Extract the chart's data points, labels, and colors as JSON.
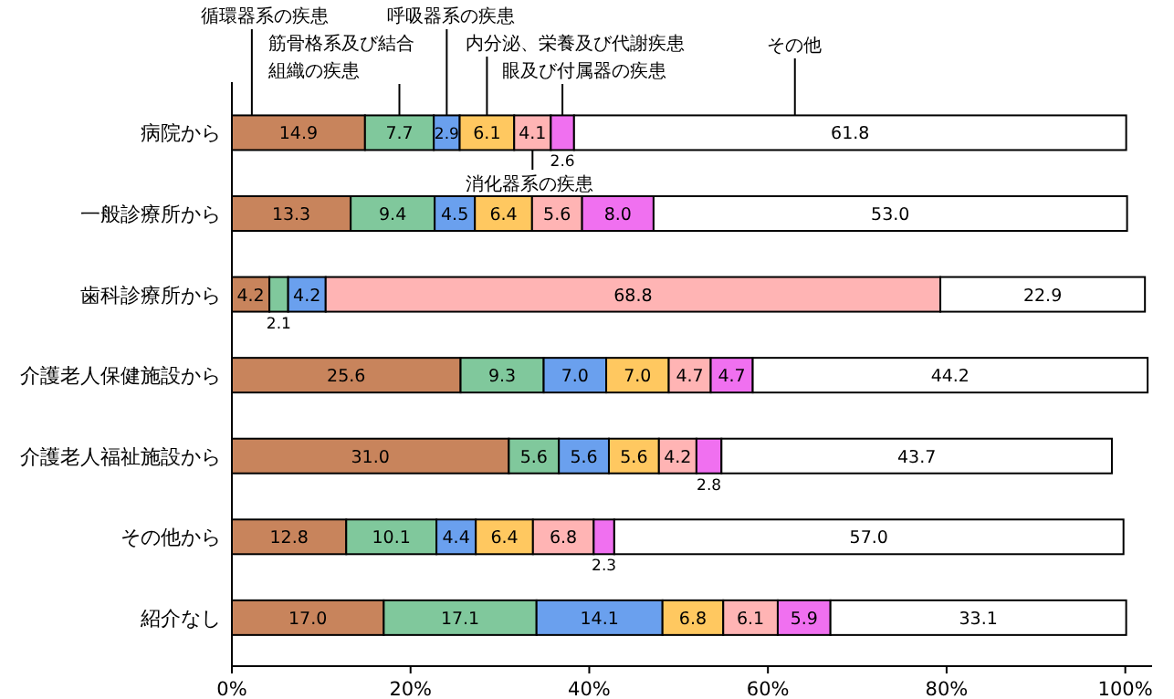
{
  "chart_data": {
    "type": "bar",
    "orientation": "horizontal",
    "stacked": true,
    "legend": "top",
    "categories": [
      "病院から",
      "一般診療所から",
      "歯科診療所から",
      "介護老人保健施設から",
      "介護老人福祉施設から",
      "その他から",
      "紹介なし"
    ],
    "xlim": [
      0,
      103
    ],
    "xticks": [
      {
        "value": 0,
        "label": "0%"
      },
      {
        "value": 20,
        "label": "20%"
      },
      {
        "value": 40,
        "label": "40%"
      },
      {
        "value": 60,
        "label": "60%"
      },
      {
        "value": 80,
        "label": "80%"
      },
      {
        "value": 100,
        "label": "100%"
      }
    ],
    "series": [
      {
        "name": "循環器系の疾患",
        "color": "#c8845c",
        "values": [
          14.9,
          13.3,
          4.2,
          25.6,
          31.0,
          12.8,
          17.0
        ],
        "value_labels": [
          "14.9",
          "13.3",
          "4.2",
          "25.6",
          "31.0",
          "12.8",
          "17.0"
        ]
      },
      {
        "name": "筋骨格系及び結合組織の疾患",
        "color": "#80c89c",
        "values": [
          7.7,
          9.4,
          2.1,
          9.3,
          5.6,
          10.1,
          17.1
        ],
        "value_labels": [
          "7.7",
          "9.4",
          "2.1",
          "9.3",
          "5.6",
          "10.1",
          "17.1"
        ]
      },
      {
        "name": "呼吸器系の疾患",
        "color": "#6aa0ee",
        "values": [
          2.9,
          4.5,
          4.2,
          7.0,
          5.6,
          4.4,
          14.1
        ],
        "value_labels": [
          "2.9",
          "4.5",
          "4.2",
          "7.0",
          "5.6",
          "4.4",
          "14.1"
        ]
      },
      {
        "name": "内分泌、栄養及び代謝疾患",
        "color": "#ffc860",
        "values": [
          6.1,
          6.4,
          0,
          7.0,
          5.6,
          6.4,
          6.8
        ],
        "value_labels": [
          "6.1",
          "6.4",
          null,
          "7.0",
          "5.6",
          "6.4",
          "6.8"
        ]
      },
      {
        "name": "消化器系の疾患",
        "color": "#ffb4b4",
        "values": [
          4.1,
          5.6,
          68.8,
          4.7,
          4.2,
          6.8,
          6.1
        ],
        "value_labels": [
          "4.1",
          "5.6",
          "68.8",
          "4.7",
          "4.2",
          "6.8",
          "6.1"
        ]
      },
      {
        "name": "眼及び付属器の疾患",
        "color": "#f070f0",
        "values": [
          2.6,
          8.0,
          0,
          4.7,
          2.8,
          2.3,
          5.9
        ],
        "value_labels": [
          "2.6",
          "8.0",
          null,
          "4.7",
          "2.8",
          "2.3",
          "5.9"
        ]
      },
      {
        "name": "その他",
        "color": "#ffffff",
        "values": [
          61.8,
          53.0,
          22.9,
          44.2,
          43.7,
          57.0,
          33.1
        ],
        "value_labels": [
          "61.8",
          "53.0",
          "22.9",
          "44.2",
          "43.7",
          "57.0",
          "33.1"
        ]
      }
    ]
  }
}
